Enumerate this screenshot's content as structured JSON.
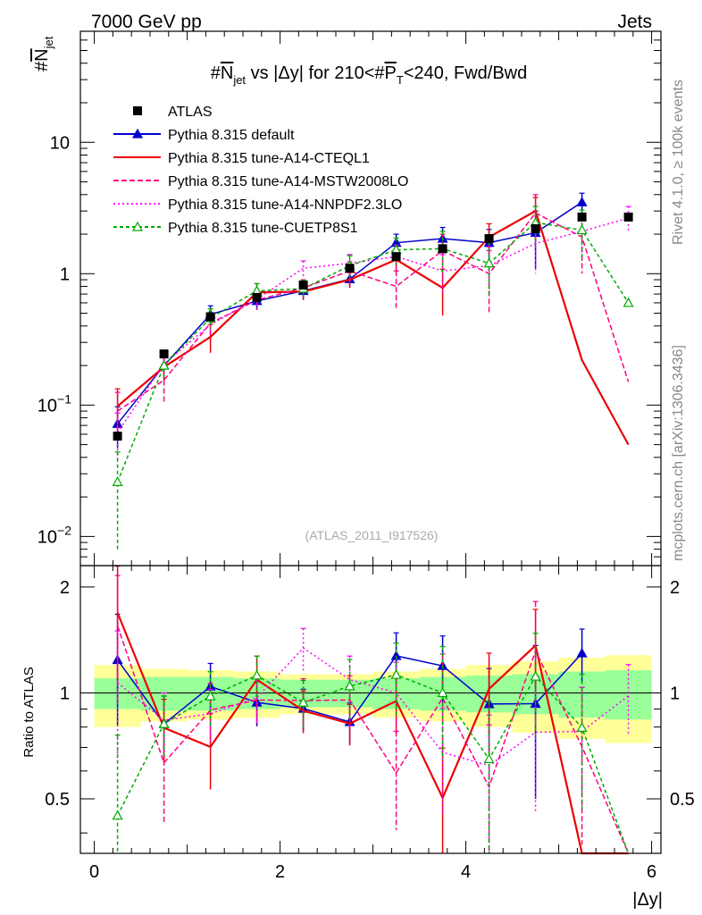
{
  "header": {
    "left": "7000 GeV pp",
    "right": "Jets",
    "side_top": "Rivet 4.1.0, ≥ 100k events",
    "side_bottom": "mcplots.cern.ch [arXiv:1306.3436]"
  },
  "chart_data": {
    "type": "line",
    "title": "#N_jet vs |Δy| for 210<#P_T<240, Fwd/Bwd",
    "title_parts": {
      "prefix": "#",
      "n": "N",
      "n_sub": "jet",
      "mid": " vs |Δy| for 210<#",
      "p": "P",
      "p_sub": "T",
      "suffix": "<240, Fwd/Bwd"
    },
    "ylabel": "#N_jet",
    "ylabel_parts": {
      "prefix": "#",
      "n": "N",
      "sub": "jet"
    },
    "ratio_ylabel": "Ratio to ATLAS",
    "xlabel": "|Δy|",
    "watermark": "(ATLAS_2011_I917526)",
    "xlim": [
      -0.15,
      6.1
    ],
    "ylim_log": [
      0.006,
      70
    ],
    "ratio_ylim": [
      0.35,
      2.3
    ],
    "x_ticks": [
      "0",
      "2",
      "4",
      "6"
    ],
    "y_ticks": [
      {
        "value": 0.01,
        "base": "10",
        "exp": "−2"
      },
      {
        "value": 0.1,
        "base": "10",
        "exp": "−1"
      },
      {
        "value": 1,
        "base": "1",
        "exp": ""
      },
      {
        "value": 10,
        "base": "10",
        "exp": ""
      }
    ],
    "ratio_ticks": [
      "0.5",
      "1",
      "2"
    ],
    "x": [
      0.25,
      0.75,
      1.25,
      1.75,
      2.25,
      2.75,
      3.25,
      3.75,
      4.25,
      4.75,
      5.25,
      5.75
    ],
    "data": {
      "name": "ATLAS",
      "values": [
        0.058,
        0.245,
        0.47,
        0.66,
        0.82,
        1.1,
        1.35,
        1.55,
        1.85,
        2.2,
        2.7,
        2.7
      ],
      "band_green": [
        0.1,
        0.11,
        0.11,
        0.1,
        0.09,
        0.09,
        0.1,
        0.11,
        0.12,
        0.13,
        0.15,
        0.16
      ],
      "band_yellow": [
        0.2,
        0.17,
        0.16,
        0.15,
        0.13,
        0.13,
        0.15,
        0.17,
        0.2,
        0.23,
        0.26,
        0.28
      ]
    },
    "series": [
      {
        "name": "Pythia 8.315 default",
        "color": "#0000cc",
        "dash": "",
        "marker": "triangle",
        "x": [
          0.25,
          0.75,
          1.25,
          1.75,
          2.25,
          2.75,
          3.25,
          3.75,
          4.25,
          4.75,
          5.25
        ],
        "values": [
          0.072,
          0.2,
          0.49,
          0.62,
          0.74,
          0.91,
          1.72,
          1.85,
          1.72,
          2.05,
          3.5
        ],
        "errors": [
          0.025,
          0.04,
          0.08,
          0.09,
          0.1,
          0.12,
          0.28,
          0.4,
          0.45,
          0.95,
          0.6
        ]
      },
      {
        "name": "Pythia 8.315 tune-A14-CTEQL1",
        "color": "#ee0000",
        "dash": "",
        "marker": "",
        "x": [
          0.25,
          0.75,
          1.25,
          1.75,
          2.25,
          2.75,
          3.25,
          3.75,
          4.25,
          4.75,
          5.25,
          5.75
        ],
        "values": [
          0.098,
          0.195,
          0.33,
          0.72,
          0.73,
          0.9,
          1.28,
          0.78,
          1.9,
          3.0,
          0.22,
          0.05
        ],
        "errors": [
          0.035,
          0.04,
          0.08,
          0.12,
          0.1,
          0.12,
          0.25,
          0.3,
          0.5,
          0.8,
          0,
          0
        ]
      },
      {
        "name": "Pythia 8.315 tune-A14-MSTW2008LO",
        "color": "#ff0080",
        "dash": "6,3",
        "marker": "",
        "x": [
          0.25,
          0.75,
          1.25,
          1.75,
          2.25,
          2.75,
          3.25,
          3.75,
          4.25,
          4.75,
          5.25,
          5.75
        ],
        "values": [
          0.09,
          0.155,
          0.42,
          0.63,
          0.78,
          1.05,
          0.8,
          1.5,
          1.0,
          2.9,
          1.9,
          0.15
        ],
        "errors": [
          0.035,
          0.05,
          0.08,
          0.1,
          0.12,
          0.18,
          0.25,
          0.5,
          0.5,
          1.1,
          0.9,
          0
        ]
      },
      {
        "name": "Pythia 8.315 tune-A14-NNPDF2.3LO",
        "color": "#ff00ff",
        "dash": "2,3",
        "marker": "",
        "x": [
          0.25,
          0.75,
          1.25,
          1.75,
          2.25,
          2.75,
          3.25,
          3.75,
          4.25,
          4.75,
          5.25,
          5.75
        ],
        "values": [
          0.062,
          0.205,
          0.41,
          0.64,
          1.1,
          1.2,
          1.35,
          1.05,
          1.15,
          1.7,
          2.1,
          2.65
        ],
        "errors": [
          0.025,
          0.04,
          0.07,
          0.1,
          0.15,
          0.2,
          0.3,
          0.35,
          0.45,
          0.7,
          0.7,
          0.6
        ]
      },
      {
        "name": "Pythia 8.315 tune-CUETP8S1",
        "color": "#00aa00",
        "dash": "4,3",
        "marker": "open-triangle",
        "x": [
          0.25,
          0.75,
          1.25,
          1.75,
          2.25,
          2.75,
          3.25,
          3.75,
          4.25,
          4.75,
          5.25,
          5.75
        ],
        "values": [
          0.026,
          0.2,
          0.46,
          0.74,
          0.77,
          1.15,
          1.52,
          1.55,
          1.2,
          2.45,
          2.15,
          0.6
        ],
        "errors": [
          0.018,
          0.04,
          0.08,
          0.1,
          0.12,
          0.22,
          0.35,
          0.55,
          0.55,
          0.8,
          0.9,
          0
        ]
      }
    ],
    "legend": [
      {
        "label": "ATLAS",
        "style": "data"
      },
      {
        "label": "Pythia 8.315 default",
        "style": "series-0"
      },
      {
        "label": "Pythia 8.315 tune-A14-CTEQL1",
        "style": "series-1"
      },
      {
        "label": "Pythia 8.315 tune-A14-MSTW2008LO",
        "style": "series-2"
      },
      {
        "label": "Pythia 8.315 tune-A14-NNPDF2.3LO",
        "style": "series-3"
      },
      {
        "label": "Pythia 8.315 tune-CUETP8S1",
        "style": "series-4"
      }
    ]
  }
}
